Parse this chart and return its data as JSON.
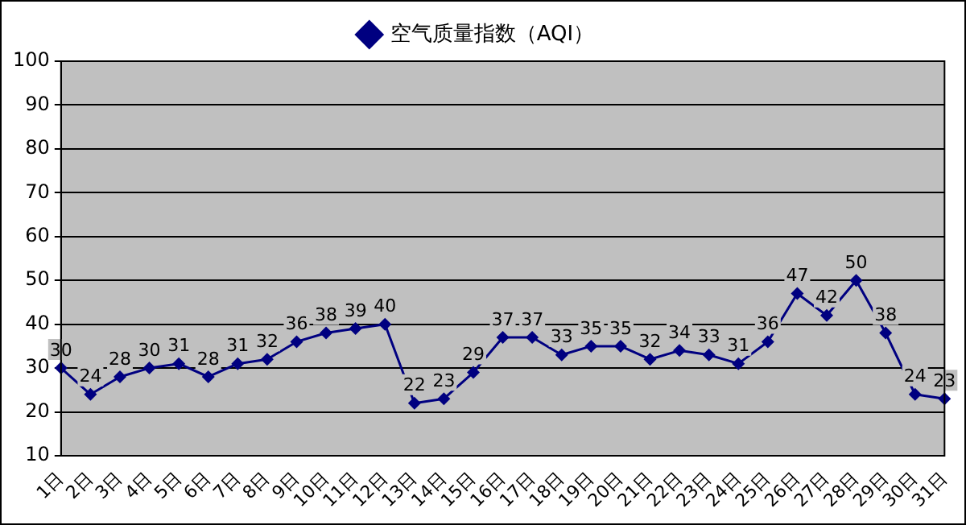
{
  "chart_data": {
    "type": "line",
    "categories": [
      "1日",
      "2日",
      "3日",
      "4日",
      "5日",
      "6日",
      "7日",
      "8日",
      "9日",
      "10日",
      "11日",
      "12日",
      "13日",
      "14日",
      "15日",
      "16日",
      "17日",
      "18日",
      "19日",
      "20日",
      "21日",
      "22日",
      "23日",
      "24日",
      "25日",
      "26日",
      "27日",
      "28日",
      "29日",
      "30日",
      "31日"
    ],
    "series": [
      {
        "name": "空气质量指数（AQI）",
        "color": "#000080",
        "values": [
          30,
          24,
          28,
          30,
          31,
          28,
          31,
          32,
          36,
          38,
          39,
          40,
          22,
          23,
          29,
          37,
          37,
          33,
          35,
          35,
          32,
          34,
          33,
          31,
          36,
          47,
          42,
          50,
          38,
          24,
          23
        ]
      }
    ],
    "ylim": [
      10,
      100
    ],
    "yticks": [
      10,
      20,
      30,
      40,
      50,
      60,
      70,
      80,
      90,
      100
    ],
    "grid": "y",
    "legend": "top",
    "marker": "diamond",
    "line_style": "solid",
    "data_labels": true
  }
}
